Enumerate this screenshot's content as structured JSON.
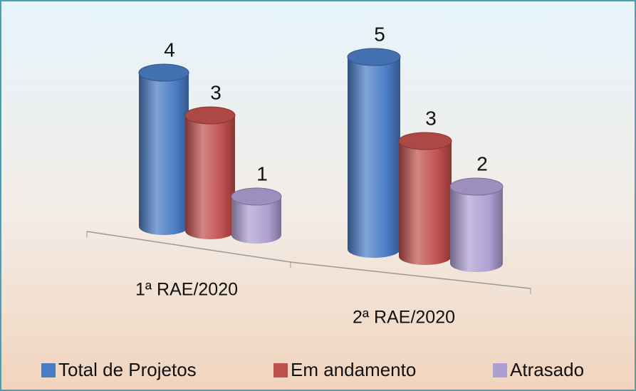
{
  "chart_data": {
    "type": "bar3d",
    "categories": [
      "1ª RAE/2020",
      "2ª RAE/2020"
    ],
    "series": [
      {
        "name": "Total de Projetos",
        "color": "#4a7cc4",
        "values": [
          4,
          5
        ]
      },
      {
        "name": "Em andamento",
        "color": "#c0504d",
        "values": [
          3,
          3
        ]
      },
      {
        "name": "Atrasado",
        "color": "#ad9fd2",
        "values": [
          1,
          2
        ]
      }
    ]
  }
}
